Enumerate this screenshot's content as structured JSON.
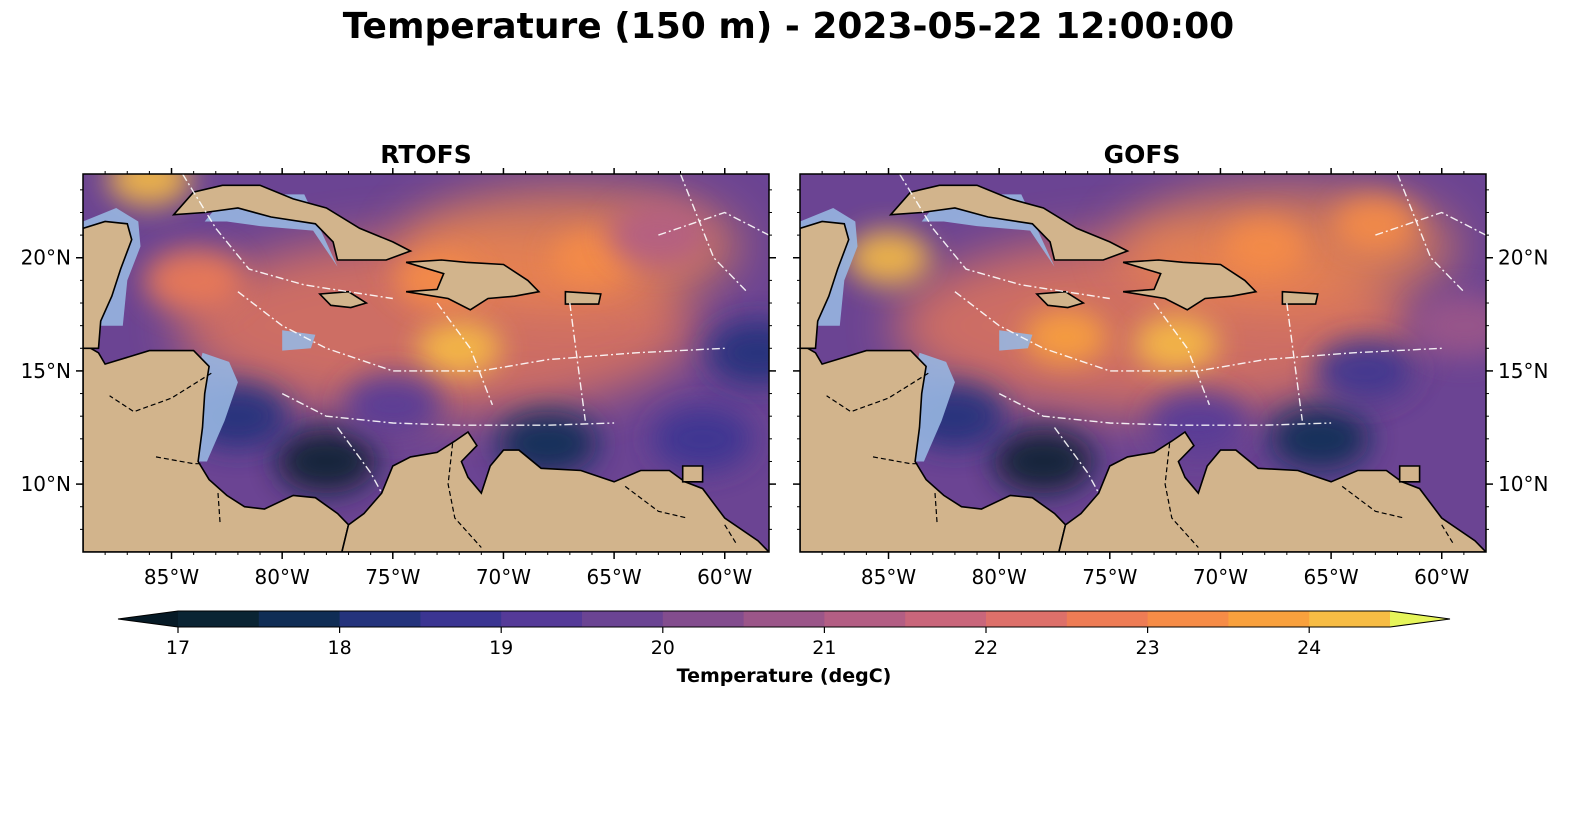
{
  "title": "Temperature (150 m) - 2023-05-22 12:00:00",
  "panels": [
    {
      "id": "rtofs",
      "title": "RTOFS"
    },
    {
      "id": "gofs",
      "title": "GOFS"
    }
  ],
  "map_extent": {
    "lon": [
      -89,
      -58
    ],
    "lat": [
      7,
      23.7
    ]
  },
  "x_ticks": [
    {
      "lon": -85,
      "label": "85°W"
    },
    {
      "lon": -80,
      "label": "80°W"
    },
    {
      "lon": -75,
      "label": "75°W"
    },
    {
      "lon": -70,
      "label": "70°W"
    },
    {
      "lon": -65,
      "label": "65°W"
    },
    {
      "lon": -60,
      "label": "60°W"
    }
  ],
  "y_ticks": [
    {
      "lat": 20,
      "label": "20°N"
    },
    {
      "lat": 15,
      "label": "15°N"
    },
    {
      "lat": 10,
      "label": "10°N"
    }
  ],
  "colorbar": {
    "label": "Temperature (degC)",
    "min": 17,
    "max": 24.5,
    "step": 0.5,
    "extend": "both",
    "tick_values": [
      17,
      18,
      19,
      20,
      21,
      22,
      23,
      24
    ],
    "tick_labels": [
      "17",
      "18",
      "19",
      "20",
      "21",
      "22",
      "23",
      "24"
    ],
    "under_color": "#061a26",
    "over_color": "#e6f55a",
    "level_colors": [
      "#0a2433",
      "#102d55",
      "#24337c",
      "#3b3592",
      "#553a98",
      "#6b4493",
      "#834d8e",
      "#9b5689",
      "#b35e84",
      "#c9667b",
      "#dd706a",
      "#ee7c55",
      "#f68c47",
      "#f9a13d",
      "#f7bc44"
    ]
  },
  "map_colors": {
    "land": "#d2b48c",
    "shelf": "#97b6e1",
    "pacific": "#08202e",
    "border": "#ffffff"
  },
  "hotspots": {
    "rtofs": [
      {
        "lon": -72,
        "lat": 16,
        "t": 24.3
      },
      {
        "lon": -86,
        "lat": 23.5,
        "t": 24.3
      },
      {
        "lon": -66,
        "lat": 20,
        "t": 23.2
      },
      {
        "lon": -84,
        "lat": 19,
        "t": 22.6
      },
      {
        "lon": -73,
        "lat": 19,
        "t": 23
      },
      {
        "lon": -78,
        "lat": 11,
        "t": 17.2
      },
      {
        "lon": -68,
        "lat": 11.8,
        "t": 17.6
      },
      {
        "lon": -82,
        "lat": 13,
        "t": 18
      },
      {
        "lon": -61,
        "lat": 12,
        "t": 18.5
      },
      {
        "lon": -58.5,
        "lat": 15.8,
        "t": 18.2
      },
      {
        "lon": -63,
        "lat": 21,
        "t": 21
      },
      {
        "lon": -75,
        "lat": 13.5,
        "t": 19.2
      }
    ],
    "gofs": [
      {
        "lon": -85,
        "lat": 20,
        "t": 24.4
      },
      {
        "lon": -72,
        "lat": 16.2,
        "t": 24.2
      },
      {
        "lon": -77,
        "lat": 16.5,
        "t": 23.5
      },
      {
        "lon": -68,
        "lat": 20.5,
        "t": 23.3
      },
      {
        "lon": -63,
        "lat": 21.5,
        "t": 23
      },
      {
        "lon": -78,
        "lat": 11,
        "t": 17.3
      },
      {
        "lon": -65.5,
        "lat": 12,
        "t": 17.6
      },
      {
        "lon": -82,
        "lat": 13,
        "t": 18.3
      },
      {
        "lon": -63.5,
        "lat": 15,
        "t": 18.6
      },
      {
        "lon": -59,
        "lat": 17,
        "t": 20.5
      },
      {
        "lon": -71,
        "lat": 12.7,
        "t": 19.2
      }
    ]
  }
}
